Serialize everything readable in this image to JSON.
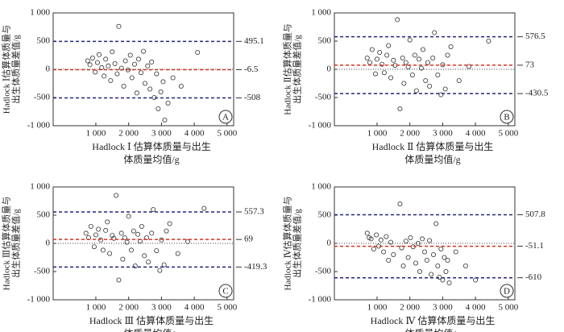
{
  "chart_data": [
    {
      "type": "scatter",
      "panel": "A",
      "ylabel": [
        "Hadlock Ⅰ估算体质量与",
        "出生体质量差值/g"
      ],
      "xlabel": [
        "Hadlock Ⅰ 估算体质量与出生",
        "体质量均值/g"
      ],
      "x": [
        750,
        820,
        900,
        980,
        1050,
        1100,
        1180,
        1250,
        1300,
        1380,
        1450,
        1500,
        1580,
        1650,
        1700,
        1780,
        1850,
        1900,
        1980,
        2050,
        2100,
        2180,
        2250,
        2300,
        2380,
        2450,
        2500,
        2580,
        2650,
        2700,
        2780,
        2850,
        2900,
        2980,
        3050,
        3100,
        3200,
        3350,
        3600,
        4100
      ],
      "y": [
        150,
        80,
        200,
        -50,
        120,
        260,
        30,
        -120,
        180,
        60,
        -200,
        310,
        100,
        -80,
        760,
        20,
        -300,
        150,
        -10,
        250,
        -150,
        90,
        -420,
        180,
        -60,
        320,
        -250,
        60,
        -350,
        130,
        -500,
        -80,
        -700,
        -400,
        -220,
        -900,
        -600,
        -150,
        -300,
        300
      ],
      "xlim": [
        -300,
        5200
      ],
      "ylim": [
        -1000,
        1000
      ],
      "xticks": [
        {
          "value": 1000,
          "label": "1 000"
        },
        {
          "value": 2000,
          "label": "2 000"
        },
        {
          "value": 3000,
          "label": "3 000"
        },
        {
          "value": 4000,
          "label": "4 000"
        },
        {
          "value": 5000,
          "label": "5 000"
        }
      ],
      "yticks": [
        {
          "value": -1000,
          "label": "-1 000"
        },
        -500,
        0,
        500,
        {
          "value": 1000,
          "label": "1 000"
        }
      ],
      "upper": 495.1,
      "mean": -6.5,
      "lower": -508,
      "point_color": "#333333",
      "mean_color": "#e0301e",
      "limit_color": "#23238c"
    },
    {
      "type": "scatter",
      "panel": "B",
      "ylabel": [
        "Hadlock Ⅱ估算体质量与",
        "出生体质量差值/g"
      ],
      "xlabel": [
        "Hadlock Ⅱ 估算体质量与出生",
        "体质量均值/g"
      ],
      "x": [
        700,
        780,
        850,
        950,
        1000,
        1080,
        1150,
        1220,
        1300,
        1350,
        1420,
        1500,
        1550,
        1620,
        1700,
        1780,
        1820,
        1880,
        1950,
        2000,
        2080,
        2150,
        2200,
        2280,
        2350,
        2400,
        2480,
        2550,
        2600,
        2700,
        2750,
        2850,
        2950,
        3000,
        3080,
        3150,
        3250,
        3500,
        3800,
        4400
      ],
      "y": [
        200,
        120,
        350,
        -80,
        180,
        300,
        90,
        -60,
        250,
        420,
        -150,
        160,
        70,
        880,
        -700,
        200,
        -250,
        120,
        40,
        520,
        -100,
        250,
        -380,
        180,
        20,
        350,
        -200,
        120,
        -300,
        200,
        650,
        -100,
        -450,
        80,
        -350,
        250,
        400,
        -200,
        50,
        500
      ],
      "xlim": [
        -300,
        5200
      ],
      "ylim": [
        -1000,
        1000
      ],
      "xticks": [
        {
          "value": 1000,
          "label": "1 000"
        },
        {
          "value": 2000,
          "label": "2 000"
        },
        {
          "value": 3000,
          "label": "3 000"
        },
        {
          "value": 4000,
          "label": "4 000"
        },
        {
          "value": 5000,
          "label": "5 000"
        }
      ],
      "yticks": [
        {
          "value": -1000,
          "label": "-1 000"
        },
        -500,
        0,
        500,
        {
          "value": 1000,
          "label": "1 000"
        }
      ],
      "upper": 576.5,
      "mean": 73,
      "lower": -430.5,
      "point_color": "#333333",
      "mean_color": "#e0301e",
      "limit_color": "#23238c"
    },
    {
      "type": "scatter",
      "panel": "C",
      "ylabel": [
        "Hadlock Ⅲ估算体质量与",
        "出生体质量差值/g"
      ],
      "xlabel": [
        "Hadlock Ⅲ 估算体质量与出生",
        "体质量均值/g"
      ],
      "x": [
        700,
        780,
        850,
        950,
        1000,
        1080,
        1150,
        1220,
        1300,
        1350,
        1420,
        1500,
        1550,
        1620,
        1700,
        1780,
        1820,
        1880,
        1950,
        2000,
        2080,
        2150,
        2200,
        2280,
        2350,
        2400,
        2480,
        2550,
        2600,
        2700,
        2750,
        2850,
        2950,
        3000,
        3080,
        3150,
        3250,
        3500,
        3800,
        4300
      ],
      "y": [
        180,
        100,
        300,
        -60,
        150,
        250,
        60,
        -120,
        230,
        380,
        -180,
        140,
        90,
        850,
        -650,
        180,
        -280,
        100,
        20,
        480,
        -120,
        220,
        -400,
        160,
        40,
        300,
        -220,
        100,
        -330,
        180,
        600,
        -130,
        -480,
        60,
        -380,
        220,
        350,
        -180,
        30,
        620
      ],
      "xlim": [
        -300,
        5200
      ],
      "ylim": [
        -1000,
        1000
      ],
      "xticks": [
        {
          "value": 1000,
          "label": "1 000"
        },
        {
          "value": 2000,
          "label": "2 000"
        },
        {
          "value": 3000,
          "label": "3 000"
        },
        {
          "value": 4000,
          "label": "4 000"
        },
        {
          "value": 5000,
          "label": "5 000"
        }
      ],
      "yticks": [
        {
          "value": -1000,
          "label": "-1 000"
        },
        -500,
        0,
        500,
        {
          "value": 1000,
          "label": "1 000"
        }
      ],
      "upper": 557.3,
      "mean": 69,
      "lower": -419.3,
      "point_color": "#333333",
      "mean_color": "#e0301e",
      "limit_color": "#23238c"
    },
    {
      "type": "scatter",
      "panel": "D",
      "ylabel": [
        "Hadlock Ⅳ估算体质量与",
        "出生体质量差值/g"
      ],
      "xlabel": [
        "Hadlock Ⅳ 估算体质量与出生",
        "体质量均值/g"
      ],
      "x": [
        700,
        760,
        820,
        900,
        980,
        1050,
        1120,
        1200,
        1280,
        1350,
        1420,
        1500,
        1700,
        1750,
        1800,
        1880,
        1950,
        2020,
        2100,
        2180,
        2250,
        2300,
        2380,
        2450,
        2520,
        2600,
        2650,
        2720,
        2800,
        2850,
        2900,
        2950,
        3000,
        3050,
        3100,
        3150,
        3200,
        3400,
        3700,
        4000
      ],
      "y": [
        180,
        100,
        80,
        -100,
        150,
        -50,
        60,
        -150,
        120,
        -300,
        20,
        -200,
        700,
        -80,
        -400,
        40,
        -250,
        100,
        -60,
        -350,
        0,
        -500,
        80,
        -150,
        -300,
        50,
        -550,
        -200,
        350,
        -400,
        -600,
        -100,
        -650,
        -250,
        -500,
        -300,
        -700,
        -150,
        -400,
        -650
      ],
      "xlim": [
        -300,
        5200
      ],
      "ylim": [
        -1000,
        1000
      ],
      "xticks": [
        {
          "value": 1000,
          "label": "1 000"
        },
        {
          "value": 2000,
          "label": "2 000"
        },
        {
          "value": 3000,
          "label": "3 000"
        },
        {
          "value": 4000,
          "label": "4 000"
        },
        {
          "value": 5000,
          "label": "5 000"
        }
      ],
      "yticks": [
        {
          "value": -1000,
          "label": "-1 000"
        },
        -500,
        0,
        500,
        {
          "value": 1000,
          "label": "1 000"
        }
      ],
      "upper": 507.8,
      "mean": -51.1,
      "lower": -610,
      "point_color": "#333333",
      "mean_color": "#e0301e",
      "limit_color": "#23238c"
    }
  ]
}
